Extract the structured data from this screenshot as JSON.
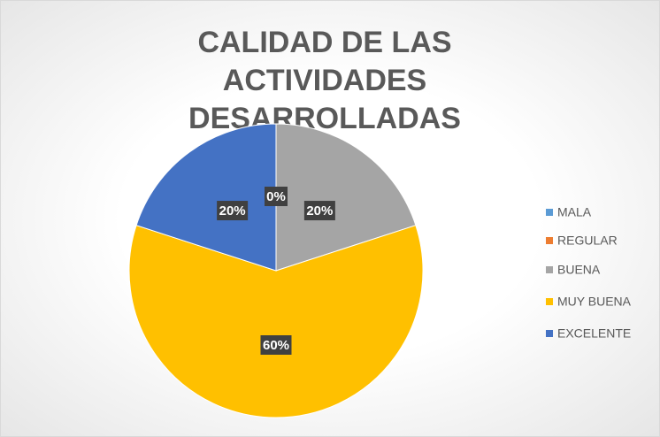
{
  "chart_data": {
    "type": "pie",
    "title": "CALIDAD DE LAS ACTIVIDADES DESARROLLADAS",
    "categories": [
      "MALA",
      "REGULAR",
      "BUENA",
      "MUY BUENA",
      "EXCELENTE"
    ],
    "values": [
      0,
      0,
      20,
      60,
      20
    ],
    "value_labels": [
      "0%",
      "0%",
      "20%",
      "60%",
      "20%"
    ],
    "colors": [
      "#5b9bd5",
      "#ed7d31",
      "#a5a5a5",
      "#ffc000",
      "#4472c4"
    ],
    "legend": "right"
  }
}
